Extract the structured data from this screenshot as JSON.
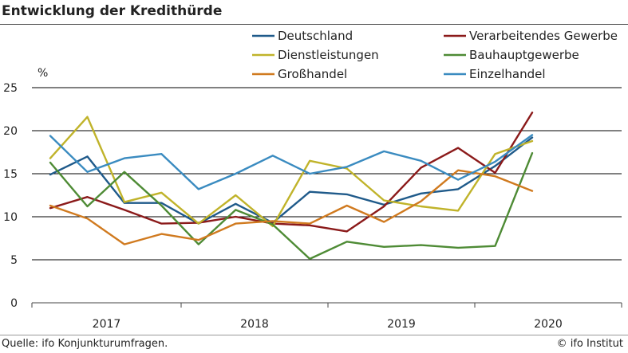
{
  "title": "Entwicklung der Kredithürde",
  "source": "Quelle: ifo Konjunkturumfragen.",
  "copyright": "© ifo Institut",
  "chart_data": {
    "type": "line",
    "title": "Entwicklung der Kredithürde",
    "xlabel": "",
    "ylabel": "%",
    "ylim": [
      0,
      25
    ],
    "yticks": [
      "0",
      "5",
      "10",
      "15",
      "20",
      "25"
    ],
    "year_labels": [
      "2017",
      "2018",
      "2019",
      "2020"
    ],
    "x": [
      "2017-01",
      "2017-04",
      "2017-07",
      "2017-10",
      "2018-01",
      "2018-04",
      "2018-07",
      "2018-10",
      "2019-01",
      "2019-04",
      "2019-07",
      "2019-10",
      "2020-01",
      "2020-04"
    ],
    "grid": true,
    "legend_position": "top",
    "series": [
      {
        "name": "Deutschland",
        "color": "#1f5a8a",
        "values": [
          14.9,
          17.0,
          11.6,
          11.6,
          9.2,
          11.5,
          9.3,
          12.9,
          12.6,
          11.4,
          12.7,
          13.2,
          15.9,
          19.2
        ]
      },
      {
        "name": "Verarbeitendes Gewerbe",
        "color": "#8b1a1a",
        "values": [
          11.0,
          12.3,
          10.8,
          9.2,
          9.3,
          10.0,
          9.2,
          9.0,
          8.3,
          11.2,
          15.7,
          18.0,
          15.1,
          22.1
        ]
      },
      {
        "name": "Dienstleistungen",
        "color": "#c0b32a",
        "values": [
          16.8,
          21.6,
          11.7,
          12.8,
          9.2,
          12.5,
          8.9,
          16.5,
          15.6,
          11.9,
          11.2,
          10.7,
          17.3,
          18.8
        ]
      },
      {
        "name": "Bauhauptgewerbe",
        "color": "#4e8b35",
        "values": [
          16.3,
          11.2,
          15.2,
          11.3,
          6.8,
          10.8,
          9.1,
          5.1,
          7.1,
          6.5,
          6.7,
          6.4,
          6.6,
          17.4
        ]
      },
      {
        "name": "Großhandel",
        "color": "#d07a1f",
        "values": [
          11.3,
          9.8,
          6.8,
          8.0,
          7.3,
          9.2,
          9.5,
          9.2,
          11.3,
          9.4,
          11.8,
          15.4,
          14.7,
          13.0
        ]
      },
      {
        "name": "Einzelhandel",
        "color": "#3a8bc0",
        "values": [
          19.4,
          15.2,
          16.8,
          17.3,
          13.2,
          15.0,
          17.1,
          15.0,
          15.8,
          17.6,
          16.5,
          14.3,
          16.4,
          19.5
        ]
      }
    ]
  }
}
